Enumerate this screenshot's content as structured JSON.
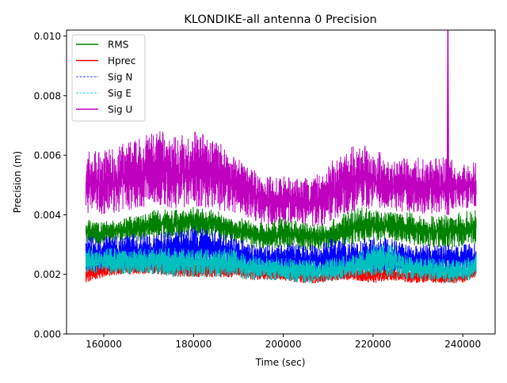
{
  "chart_data": {
    "type": "line",
    "title": "KLONDIKE-all antenna 0 Precision",
    "xlabel": "Time (sec)",
    "ylabel": "Precision (m)",
    "xlim": [
      151700,
      247200
    ],
    "ylim": [
      0,
      0.0102
    ],
    "xticks": [
      "160000",
      "180000",
      "200000",
      "220000",
      "240000"
    ],
    "xtick_values": [
      160000,
      180000,
      200000,
      220000,
      240000
    ],
    "yticks": [
      "0.000",
      "0.002",
      "0.004",
      "0.006",
      "0.008",
      "0.010"
    ],
    "ytick_values": [
      0,
      0.002,
      0.004,
      0.006,
      0.008,
      0.01
    ],
    "legend_position": "top-left",
    "grid": false,
    "x": [
      156000,
      160000,
      164000,
      168000,
      172000,
      176000,
      180000,
      184000,
      188000,
      192000,
      196000,
      200000,
      204000,
      208000,
      212000,
      216000,
      220000,
      224000,
      228000,
      232000,
      236000,
      240000,
      243000
    ],
    "series": [
      {
        "name": "Sig U",
        "color": "#bf00bf",
        "style": "solid",
        "high": [
          0.0062,
          0.0062,
          0.0064,
          0.0066,
          0.0069,
          0.0066,
          0.0069,
          0.0066,
          0.0062,
          0.0057,
          0.0053,
          0.0053,
          0.0052,
          0.0054,
          0.006,
          0.0064,
          0.0063,
          0.0058,
          0.006,
          0.0059,
          0.006,
          0.0057,
          0.0058
        ],
        "low": [
          0.004,
          0.004,
          0.0041,
          0.0042,
          0.0043,
          0.0042,
          0.0043,
          0.0042,
          0.0041,
          0.0039,
          0.0036,
          0.0037,
          0.0036,
          0.0036,
          0.0039,
          0.0041,
          0.0042,
          0.0041,
          0.0041,
          0.004,
          0.0041,
          0.0042,
          0.0042
        ],
        "spike": {
          "x": 236500,
          "y": 0.0102
        }
      },
      {
        "name": "RMS",
        "color": "#008000",
        "style": "solid",
        "high": [
          0.0039,
          0.0038,
          0.0039,
          0.004,
          0.0042,
          0.0042,
          0.0043,
          0.0042,
          0.004,
          0.0039,
          0.0037,
          0.0039,
          0.0038,
          0.0037,
          0.0039,
          0.0043,
          0.0042,
          0.0041,
          0.0041,
          0.004,
          0.004,
          0.0041,
          0.0042
        ],
        "low": [
          0.003,
          0.003,
          0.0031,
          0.0031,
          0.0032,
          0.0032,
          0.0033,
          0.0032,
          0.0031,
          0.0029,
          0.0028,
          0.0029,
          0.0028,
          0.0028,
          0.0029,
          0.003,
          0.0031,
          0.0031,
          0.003,
          0.0029,
          0.0029,
          0.0029,
          0.003
        ]
      },
      {
        "name": "Hprec",
        "color": "#ff0000",
        "style": "solid",
        "high": [
          0.0024,
          0.0024,
          0.0024,
          0.0024,
          0.0024,
          0.0024,
          0.0024,
          0.0024,
          0.0024,
          0.0023,
          0.0022,
          0.0022,
          0.0021,
          0.0021,
          0.0022,
          0.0022,
          0.0023,
          0.0023,
          0.0022,
          0.0022,
          0.0021,
          0.0021,
          0.0022
        ],
        "low": [
          0.0017,
          0.0019,
          0.002,
          0.002,
          0.002,
          0.0019,
          0.0019,
          0.0019,
          0.0019,
          0.0018,
          0.0018,
          0.0018,
          0.0017,
          0.0017,
          0.0018,
          0.0018,
          0.0017,
          0.0018,
          0.0017,
          0.0017,
          0.0017,
          0.0017,
          0.0019
        ]
      },
      {
        "name": "Sig N",
        "color": "#0000ff",
        "style": "dashed",
        "high": [
          0.0033,
          0.0033,
          0.0033,
          0.0034,
          0.0034,
          0.0035,
          0.0036,
          0.0035,
          0.0034,
          0.0031,
          0.003,
          0.0031,
          0.003,
          0.003,
          0.0033,
          0.0031,
          0.0033,
          0.0032,
          0.0031,
          0.003,
          0.003,
          0.003,
          0.0031
        ],
        "low": [
          0.0021,
          0.0021,
          0.0022,
          0.0022,
          0.0022,
          0.0022,
          0.0022,
          0.0022,
          0.0022,
          0.0021,
          0.002,
          0.002,
          0.002,
          0.0019,
          0.002,
          0.0021,
          0.0021,
          0.0021,
          0.0021,
          0.002,
          0.002,
          0.002,
          0.0021
        ]
      },
      {
        "name": "Sig E",
        "color": "#00bfbf",
        "style": "dashed",
        "high": [
          0.0029,
          0.0029,
          0.0029,
          0.0029,
          0.0029,
          0.0029,
          0.0029,
          0.0029,
          0.0029,
          0.0027,
          0.0026,
          0.0026,
          0.0025,
          0.0025,
          0.0026,
          0.0027,
          0.003,
          0.0031,
          0.0026,
          0.0026,
          0.0025,
          0.0025,
          0.0027
        ],
        "low": [
          0.002,
          0.002,
          0.002,
          0.002,
          0.002,
          0.0019,
          0.0019,
          0.0019,
          0.0019,
          0.0018,
          0.0018,
          0.0018,
          0.0017,
          0.0017,
          0.0018,
          0.0019,
          0.0019,
          0.0019,
          0.0018,
          0.0018,
          0.0017,
          0.0017,
          0.0019
        ]
      }
    ],
    "legend": [
      {
        "label": "RMS",
        "color": "#008000",
        "style": "solid"
      },
      {
        "label": "Hprec",
        "color": "#ff0000",
        "style": "solid"
      },
      {
        "label": "Sig N",
        "color": "#0000ff",
        "style": "dashed"
      },
      {
        "label": "Sig E",
        "color": "#00bfbf",
        "style": "dashed"
      },
      {
        "label": "Sig U",
        "color": "#bf00bf",
        "style": "solid"
      }
    ]
  }
}
